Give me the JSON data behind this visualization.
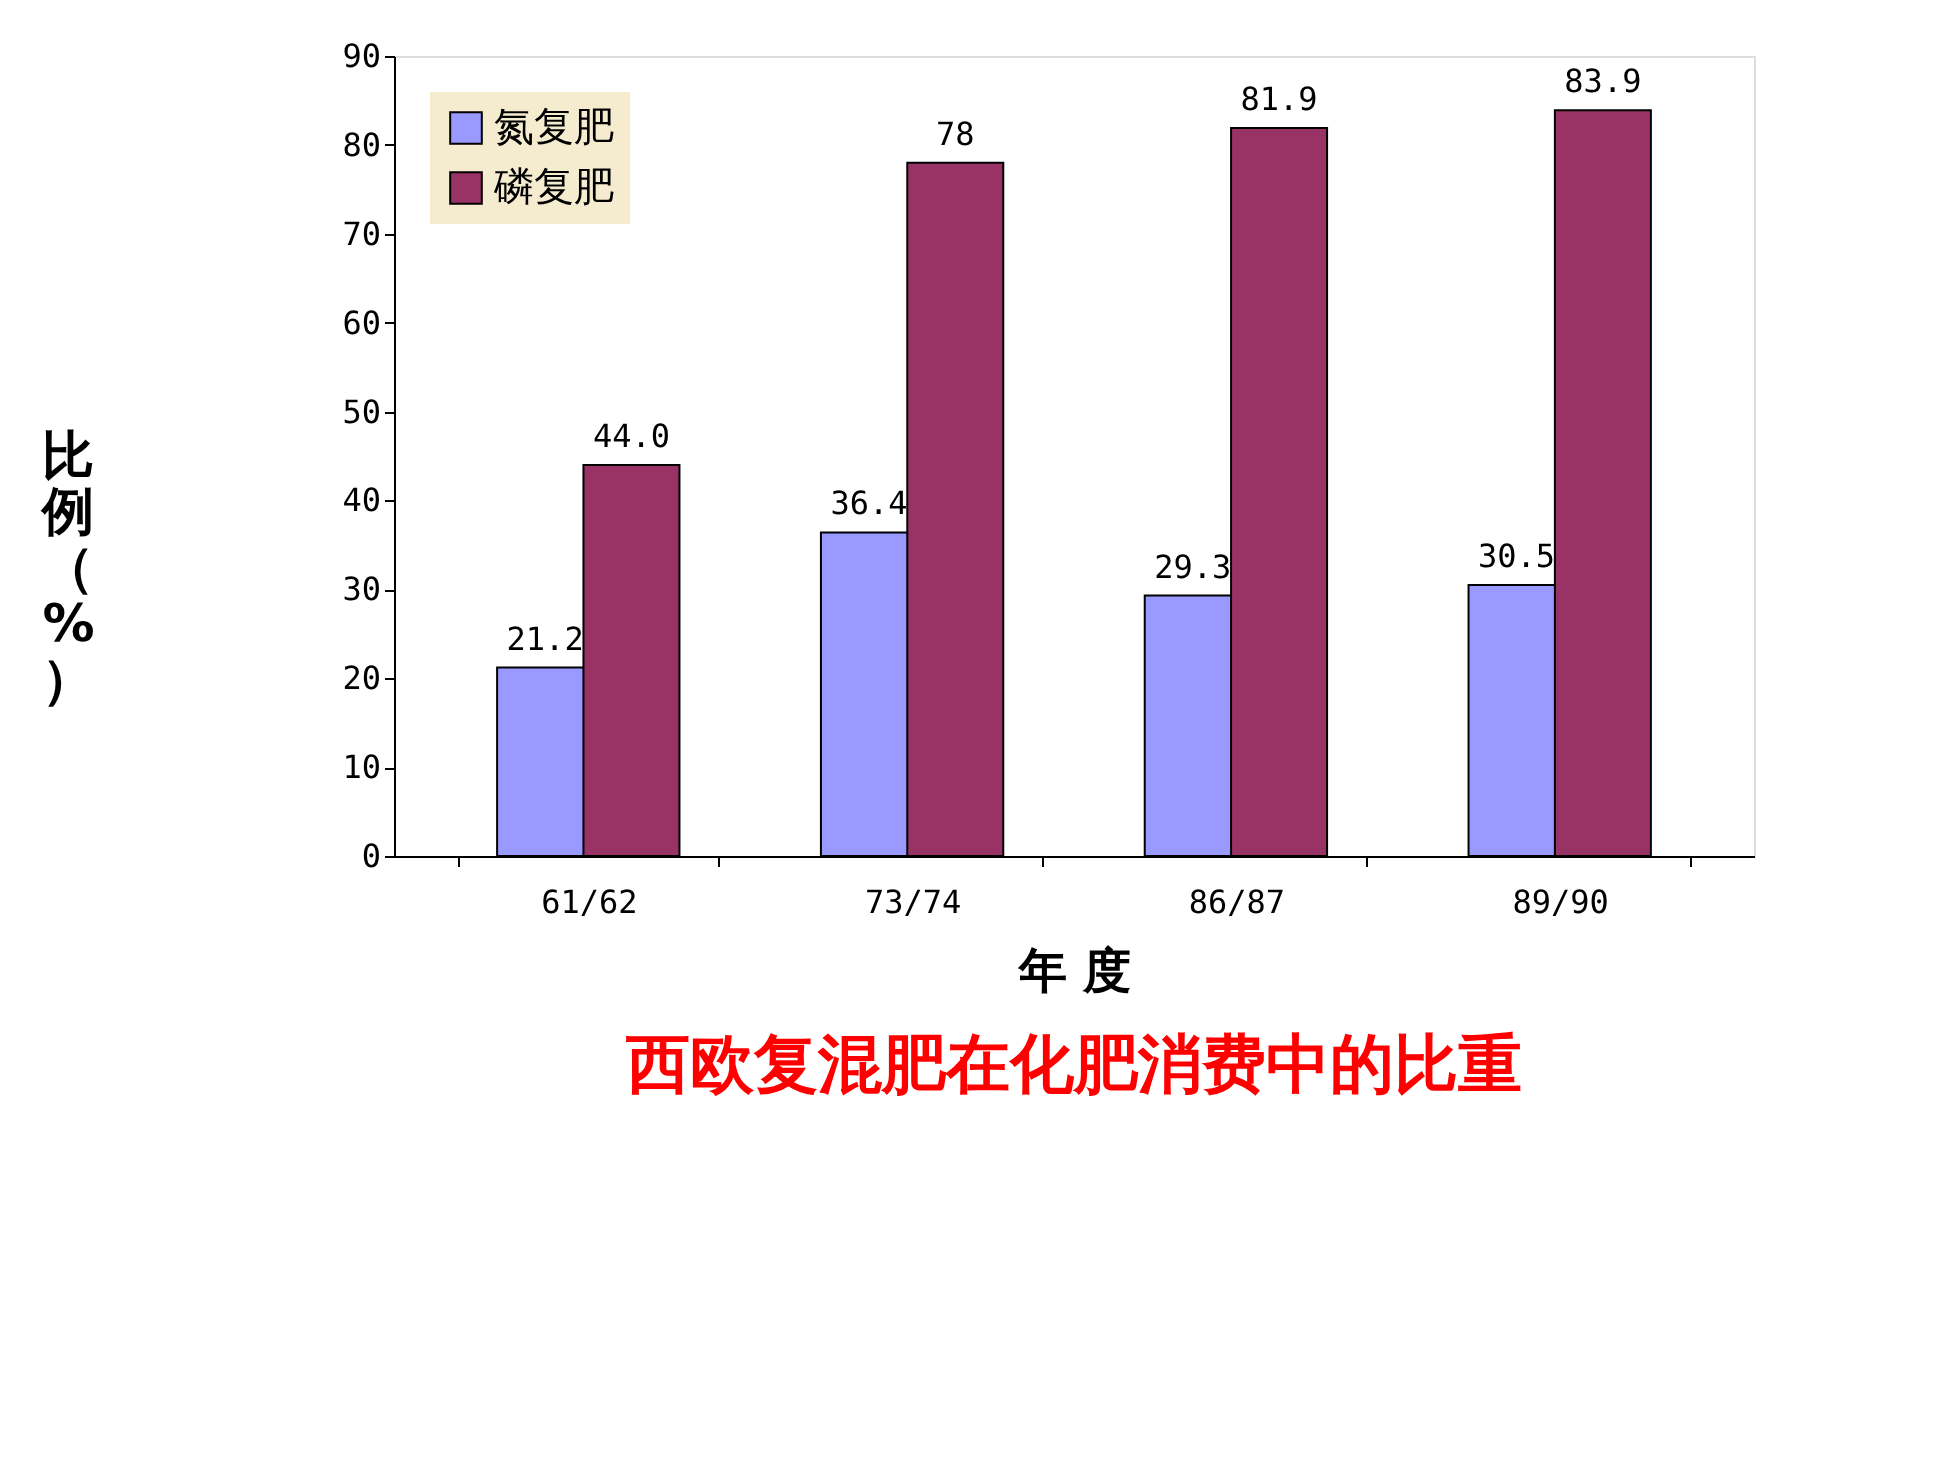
{
  "chart_data": {
    "type": "bar",
    "title": "西欧复混肥在化肥消费中的比重",
    "xlabel": "年 度",
    "ylabel": "比例（%）",
    "categories": [
      "61/62",
      "73/74",
      "86/87",
      "89/90"
    ],
    "series": [
      {
        "name": "氮复肥",
        "color": "#9999ff",
        "values": [
          21.2,
          36.4,
          29.3,
          30.5
        ],
        "value_labels": [
          "21.2",
          "36.4",
          "29.3",
          "30.5"
        ]
      },
      {
        "name": "磷复肥",
        "color": "#993366",
        "values": [
          44.0,
          78,
          81.9,
          83.9
        ],
        "value_labels": [
          "44.0",
          "78",
          "81.9",
          "83.9"
        ]
      }
    ],
    "ylim": [
      0,
      90
    ],
    "yticks": [
      0,
      10,
      20,
      30,
      40,
      50,
      60,
      70,
      80,
      90
    ],
    "grid": false,
    "legend": "top left"
  }
}
